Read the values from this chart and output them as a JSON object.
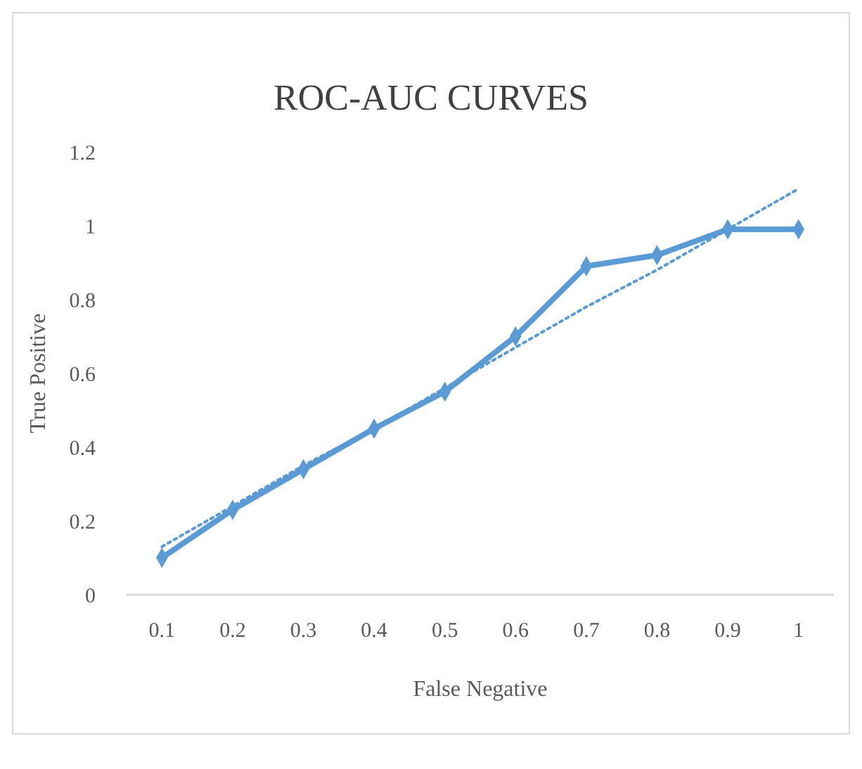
{
  "chart_data": {
    "type": "line",
    "title": "ROC-AUC CURVES",
    "xlabel": "False Negative",
    "ylabel": "True Positive",
    "categories": [
      "0.1",
      "0.2",
      "0.3",
      "0.4",
      "0.5",
      "0.6",
      "0.7",
      "0.8",
      "0.9",
      "1"
    ],
    "series": [
      {
        "color": "#5b9bd5",
        "marker": "diamond",
        "line_style": "solid",
        "values": [
          0.1,
          0.23,
          0.34,
          0.45,
          0.55,
          0.7,
          0.89,
          0.92,
          0.99,
          0.99
        ]
      },
      {
        "type": "line",
        "color": "#5b9bd5",
        "marker": "none",
        "line_style": "dotted",
        "values": [
          0.13,
          0.24,
          0.35,
          0.45,
          0.56,
          0.67,
          0.78,
          0.88,
          0.99,
          1.1
        ]
      }
    ],
    "ylim": [
      0,
      1.2
    ],
    "yticks": [
      0,
      0.2,
      0.4,
      0.6,
      0.8,
      1,
      1.2
    ],
    "grid": false
  }
}
